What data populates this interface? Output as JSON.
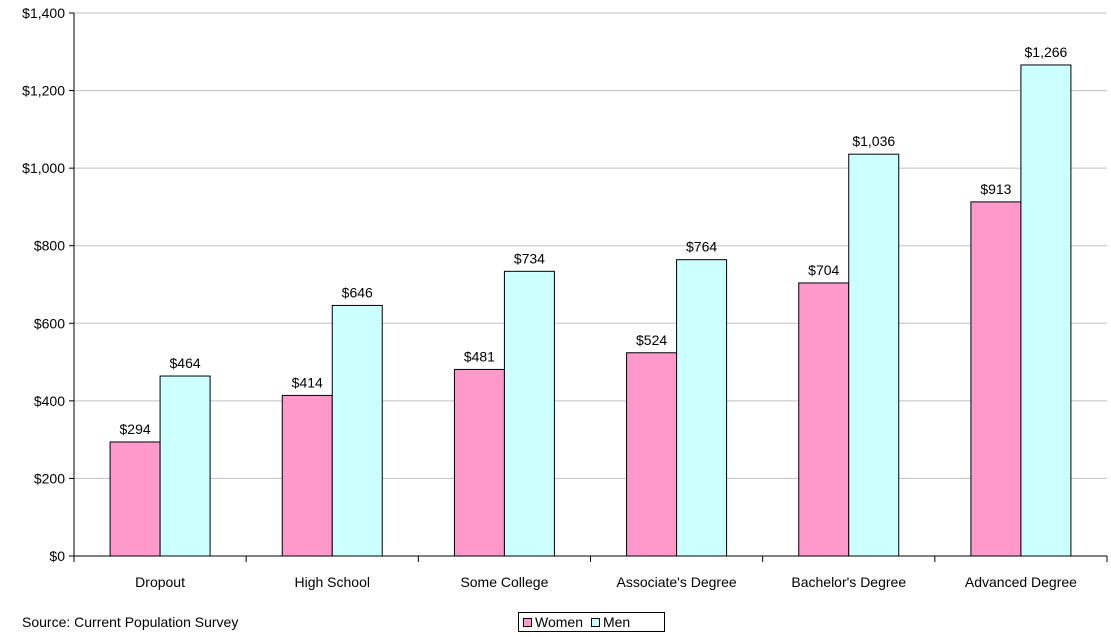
{
  "chart_data": {
    "type": "bar",
    "categories": [
      "Dropout",
      "High School",
      "Some College",
      "Associate's Degree",
      "Bachelor's Degree",
      "Advanced Degree"
    ],
    "series": [
      {
        "name": "Women",
        "values": [
          294,
          414,
          481,
          524,
          704,
          913
        ],
        "labels": [
          "$294",
          "$414",
          "$481",
          "$524",
          "$704",
          "$913"
        ],
        "color": "#ff99cc"
      },
      {
        "name": "Men",
        "values": [
          464,
          646,
          734,
          764,
          1036,
          1266
        ],
        "labels": [
          "$464",
          "$646",
          "$734",
          "$764",
          "$1,036",
          "$1,266"
        ],
        "color": "#ccffff"
      }
    ],
    "ylim": [
      0,
      1400
    ],
    "yticks": [
      0,
      200,
      400,
      600,
      800,
      1000,
      1200,
      1400
    ],
    "ytick_labels": [
      "$0",
      "$200",
      "$400",
      "$600",
      "$800",
      "$1,000",
      "$1,200",
      "$1,400"
    ],
    "grid": true,
    "legend_position": "bottom-center"
  },
  "source_note": "Source:  Current Population Survey"
}
